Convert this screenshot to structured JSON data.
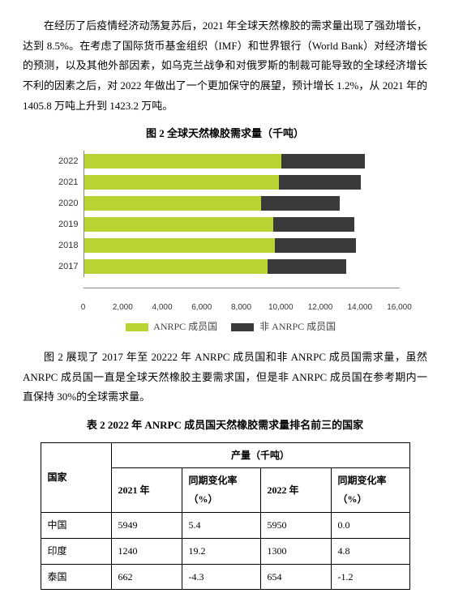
{
  "para1": "在经历了后疫情经济动荡复苏后，2021 年全球天然橡胶的需求量出现了强劲增长，达到 8.5%。在考虑了国际货币基金组织（IMF）和世界银行（World Bank）对经济增长的预测，以及其他外部因素，如乌克兰战争和对俄罗斯的制裁可能导致的全球经济增长不利的因素之后，对 2022 年做出了一个更加保守的展望，预计增长 1.2%，从 2021 年的 1405.8 万吨上升到 1423.2 万吨。",
  "fig2": {
    "caption": "图 2  全球天然橡胶需求量（千吨）",
    "type": "stacked-horizontal-bar",
    "xmin": 0,
    "xmax": 16000,
    "xtick_step": 2000,
    "xticks": [
      "0",
      "2,000",
      "4,000",
      "6,000",
      "8,000",
      "10,000",
      "12,000",
      "14,000",
      "16,000"
    ],
    "categories": [
      "2022",
      "2021",
      "2020",
      "2019",
      "2018",
      "2017"
    ],
    "series": [
      {
        "name": "ANRPC 成员国",
        "color": "#b7d433"
      },
      {
        "name": "非 ANRPC 成员国",
        "color": "#3a3a3a"
      }
    ],
    "values": {
      "2022": [
        10000,
        4232
      ],
      "2021": [
        9900,
        4158
      ],
      "2020": [
        9000,
        3960
      ],
      "2019": [
        9600,
        4100
      ],
      "2018": [
        9700,
        4100
      ],
      "2017": [
        9300,
        4000
      ]
    },
    "grid_color": "#d9d9d9",
    "background_color": "#ffffff",
    "legend_labels": {
      "a": "ANRPC 成员国",
      "b": "非 ANRPC 成员国"
    }
  },
  "para2": "图 2 展现了 2017 年至 20222 年 ANRPC 成员国和非 ANRPC 成员国需求量，虽然 ANRPC 成员国一直是全球天然橡胶主要需求国，但是非 ANRPC 成员国在参考期内一直保持 30%的全球需求量。",
  "table2": {
    "caption": "表 2  2022 年 ANRPC 成员国天然橡胶需求量排名前三的国家",
    "group_header": "产量（千吨）",
    "columns": {
      "country": "国家",
      "v2021": "2021 年",
      "var2021": "同期变化率（%）",
      "v2022": "2022 年",
      "var2022": "同期变化率（%）"
    },
    "rows": [
      {
        "country": "中国",
        "v2021": "5949",
        "var2021": "5.4",
        "v2022": "5950",
        "var2022": "0.0"
      },
      {
        "country": "印度",
        "v2021": "1240",
        "var2021": "19.2",
        "v2022": "1300",
        "var2022": "4.8"
      },
      {
        "country": "泰国",
        "v2021": "662",
        "var2021": "-4.3",
        "v2022": "654",
        "var2022": "-1.2"
      }
    ]
  }
}
